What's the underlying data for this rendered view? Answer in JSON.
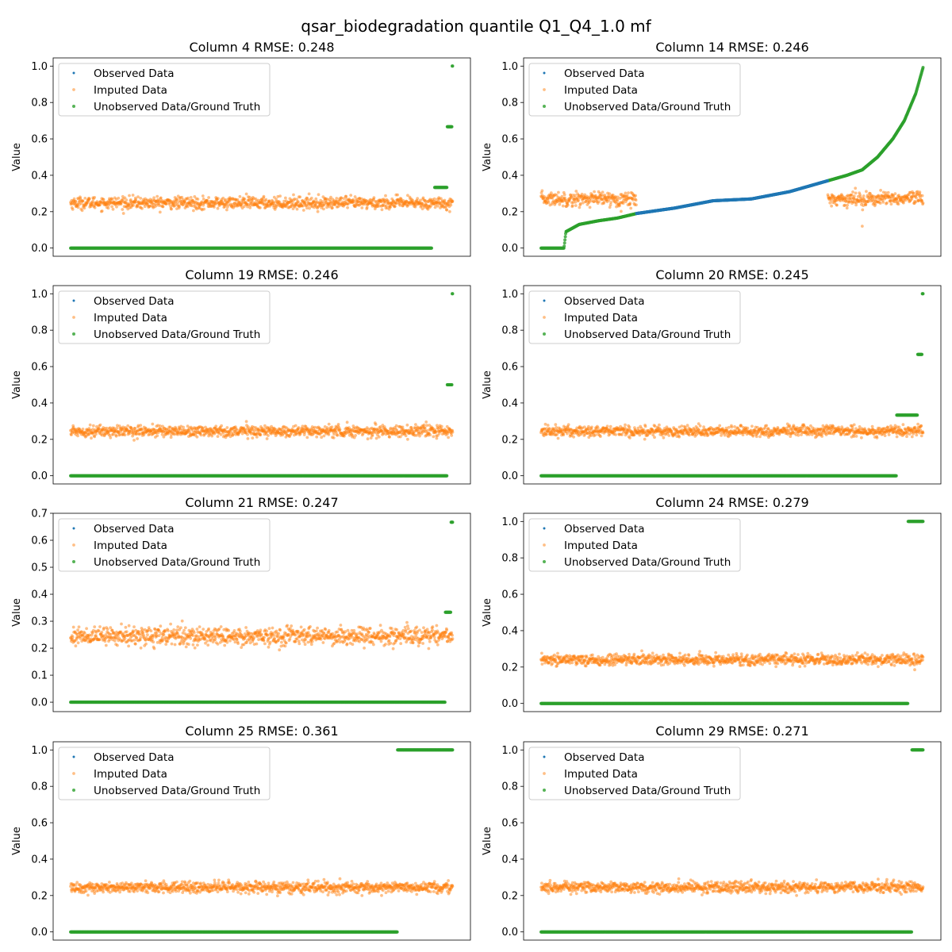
{
  "figure": {
    "title": "qsar_biodegradation quantile Q1_Q4_1.0 mf"
  },
  "colors": {
    "observed": "#1f77b4",
    "imputed": "#ff7f0e",
    "unobserved": "#2ca02c"
  },
  "legend": {
    "placement": "upper-left",
    "observed_label": "Observed Data",
    "imputed_label": "Imputed Data",
    "unobserved_label": "Unobserved Data/Ground Truth"
  },
  "chart_data": [
    {
      "type": "scatter",
      "title": "Column 4 RMSE: 0.248",
      "ylabel": "Value",
      "ylim": [
        -0.045,
        1.045
      ],
      "yticks": [
        "0.0",
        "0.2",
        "0.4",
        "0.6",
        "0.8",
        "1.0"
      ],
      "ytick_values": [
        0,
        0.2,
        0.4,
        0.6,
        0.8,
        1.0
      ],
      "n_points": 1055,
      "imputed": {
        "mean": 0.248,
        "spread": 0.03,
        "range": [
          0.0,
          1.0
        ]
      },
      "unobserved_segments": [
        {
          "from": 0.0,
          "to": 0.945,
          "value": 0.0
        },
        {
          "from": 0.952,
          "to": 0.985,
          "value": 0.333
        },
        {
          "from": 0.985,
          "to": 0.998,
          "value": 0.667
        },
        {
          "from": 0.998,
          "to": 1.0,
          "value": 1.0
        }
      ],
      "observed_segments": []
    },
    {
      "type": "scatter",
      "title": "Column 14 RMSE: 0.246",
      "ylabel": "Value",
      "ylim": [
        -0.045,
        1.045
      ],
      "yticks": [
        "0.0",
        "0.2",
        "0.4",
        "0.6",
        "0.8",
        "1.0"
      ],
      "ytick_values": [
        0,
        0.2,
        0.4,
        0.6,
        0.8,
        1.0
      ],
      "n_points": 1055,
      "imputed": {
        "mean": 0.27,
        "spread": 0.035,
        "range": [
          0.0,
          0.25
        ],
        "range2": [
          0.75,
          1.0
        ],
        "outlier": [
          0.84,
          0.12
        ]
      },
      "unobserved_curve": [
        [
          0.0,
          0.0
        ],
        [
          0.06,
          0.0
        ],
        [
          0.065,
          0.09
        ],
        [
          0.1,
          0.13
        ],
        [
          0.15,
          0.15
        ],
        [
          0.2,
          0.165
        ],
        [
          0.25,
          0.19
        ]
      ],
      "unobserved_curve2": [
        [
          0.75,
          0.37
        ],
        [
          0.8,
          0.4
        ],
        [
          0.84,
          0.43
        ],
        [
          0.88,
          0.5
        ],
        [
          0.92,
          0.6
        ],
        [
          0.95,
          0.7
        ],
        [
          0.98,
          0.85
        ],
        [
          1.0,
          1.0
        ]
      ],
      "observed_curve": [
        [
          0.25,
          0.19
        ],
        [
          0.35,
          0.22
        ],
        [
          0.45,
          0.26
        ],
        [
          0.55,
          0.27
        ],
        [
          0.65,
          0.31
        ],
        [
          0.75,
          0.37
        ]
      ]
    },
    {
      "type": "scatter",
      "title": "Column 19 RMSE: 0.246",
      "ylabel": "Value",
      "ylim": [
        -0.045,
        1.045
      ],
      "yticks": [
        "0.0",
        "0.2",
        "0.4",
        "0.6",
        "0.8",
        "1.0"
      ],
      "ytick_values": [
        0,
        0.2,
        0.4,
        0.6,
        0.8,
        1.0
      ],
      "n_points": 1055,
      "imputed": {
        "mean": 0.245,
        "spread": 0.028,
        "range": [
          0.0,
          1.0
        ]
      },
      "unobserved_segments": [
        {
          "from": 0.0,
          "to": 0.985,
          "value": 0.0
        },
        {
          "from": 0.985,
          "to": 0.998,
          "value": 0.5
        },
        {
          "from": 0.998,
          "to": 1.0,
          "value": 1.0
        }
      ],
      "observed_segments": []
    },
    {
      "type": "scatter",
      "title": "Column 20 RMSE: 0.245",
      "ylabel": "Value",
      "ylim": [
        -0.045,
        1.045
      ],
      "yticks": [
        "0.0",
        "0.2",
        "0.4",
        "0.6",
        "0.8",
        "1.0"
      ],
      "ytick_values": [
        0,
        0.2,
        0.4,
        0.6,
        0.8,
        1.0
      ],
      "n_points": 1055,
      "imputed": {
        "mean": 0.245,
        "spread": 0.028,
        "range": [
          0.0,
          1.0
        ]
      },
      "unobserved_segments": [
        {
          "from": 0.0,
          "to": 0.93,
          "value": 0.0
        },
        {
          "from": 0.93,
          "to": 0.985,
          "value": 0.333
        },
        {
          "from": 0.985,
          "to": 0.997,
          "value": 0.667
        },
        {
          "from": 0.997,
          "to": 1.0,
          "value": 1.0
        }
      ],
      "observed_segments": []
    },
    {
      "type": "scatter",
      "title": "Column 21 RMSE: 0.247",
      "ylabel": "Value",
      "ylim": [
        -0.035,
        0.7
      ],
      "yticks": [
        "0.0",
        "0.1",
        "0.2",
        "0.3",
        "0.4",
        "0.5",
        "0.6",
        "0.7"
      ],
      "ytick_values": [
        0,
        0.1,
        0.2,
        0.3,
        0.4,
        0.5,
        0.6,
        0.7
      ],
      "n_points": 1055,
      "imputed": {
        "mean": 0.245,
        "spread": 0.03,
        "range": [
          0.0,
          1.0
        ]
      },
      "unobserved_segments": [
        {
          "from": 0.0,
          "to": 0.98,
          "value": 0.0
        },
        {
          "from": 0.98,
          "to": 0.995,
          "value": 0.333
        },
        {
          "from": 0.995,
          "to": 1.0,
          "value": 0.667
        }
      ],
      "observed_segments": []
    },
    {
      "type": "scatter",
      "title": "Column 24 RMSE: 0.279",
      "ylabel": "Value",
      "ylim": [
        -0.045,
        1.045
      ],
      "yticks": [
        "0.0",
        "0.2",
        "0.4",
        "0.6",
        "0.8",
        "1.0"
      ],
      "ytick_values": [
        0,
        0.2,
        0.4,
        0.6,
        0.8,
        1.0
      ],
      "n_points": 1055,
      "imputed": {
        "mean": 0.24,
        "spread": 0.028,
        "range": [
          0.0,
          1.0
        ]
      },
      "unobserved_segments": [
        {
          "from": 0.0,
          "to": 0.96,
          "value": 0.0
        },
        {
          "from": 0.96,
          "to": 1.0,
          "value": 1.0
        }
      ],
      "observed_segments": []
    },
    {
      "type": "scatter",
      "title": "Column 25 RMSE: 0.361",
      "ylabel": "Value",
      "ylim": [
        -0.045,
        1.045
      ],
      "yticks": [
        "0.0",
        "0.2",
        "0.4",
        "0.6",
        "0.8",
        "1.0"
      ],
      "ytick_values": [
        0,
        0.2,
        0.4,
        0.6,
        0.8,
        1.0
      ],
      "n_points": 1055,
      "imputed": {
        "mean": 0.245,
        "spread": 0.028,
        "range": [
          0.0,
          1.0
        ]
      },
      "unobserved_segments": [
        {
          "from": 0.0,
          "to": 0.855,
          "value": 0.0
        },
        {
          "from": 0.855,
          "to": 1.0,
          "value": 1.0
        }
      ],
      "observed_segments": []
    },
    {
      "type": "scatter",
      "title": "Column 29 RMSE: 0.271",
      "ylabel": "Value",
      "ylim": [
        -0.045,
        1.045
      ],
      "yticks": [
        "0.0",
        "0.2",
        "0.4",
        "0.6",
        "0.8",
        "1.0"
      ],
      "ytick_values": [
        0,
        0.2,
        0.4,
        0.6,
        0.8,
        1.0
      ],
      "n_points": 1055,
      "imputed": {
        "mean": 0.245,
        "spread": 0.028,
        "range": [
          0.0,
          1.0
        ]
      },
      "unobserved_segments": [
        {
          "from": 0.0,
          "to": 0.97,
          "value": 0.0
        },
        {
          "from": 0.97,
          "to": 1.0,
          "value": 1.0
        }
      ],
      "observed_segments": []
    }
  ]
}
